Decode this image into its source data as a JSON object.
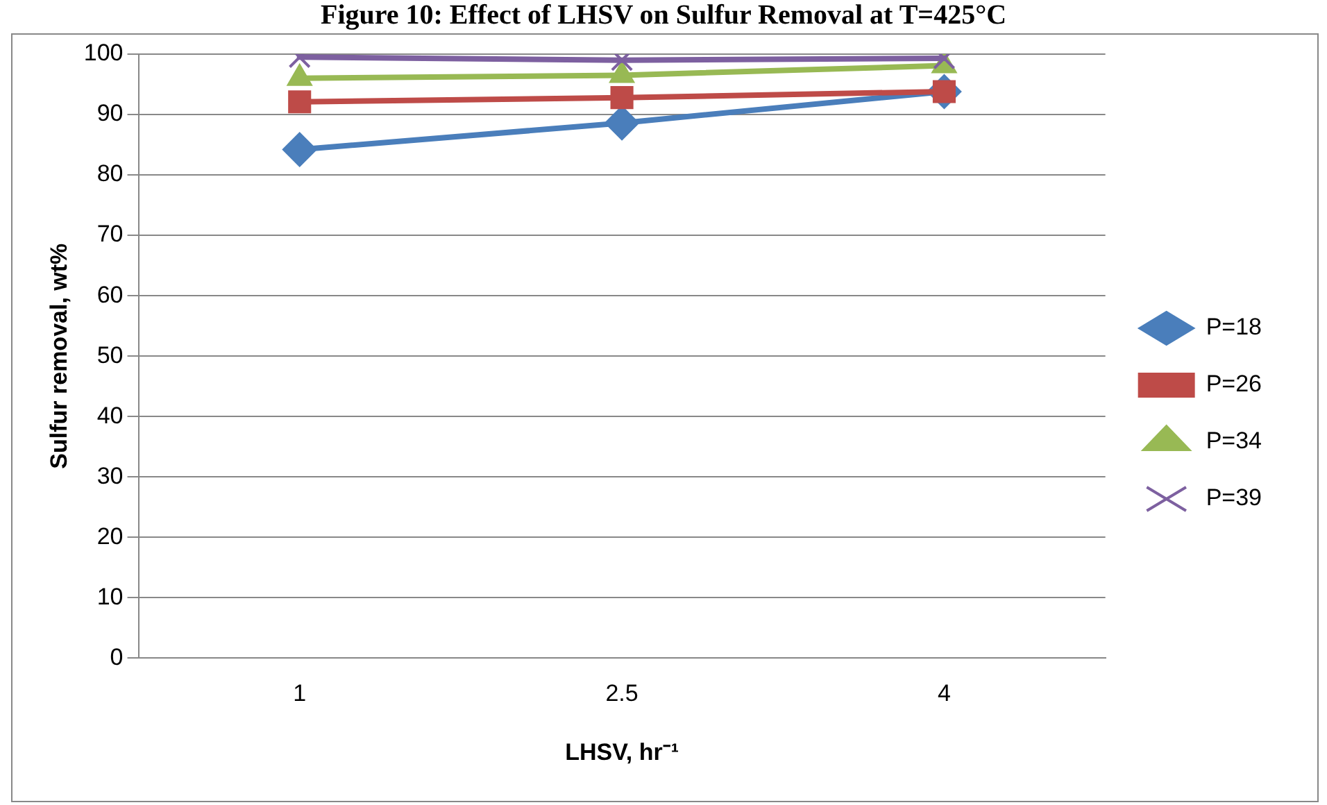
{
  "chart_data": {
    "type": "line",
    "title": "Figure 10: Effect of LHSV on Sulfur Removal at T=425°C",
    "xlabel": "LHSV, hr⁻¹",
    "ylabel": "Sulfur removal, wt%",
    "categories": [
      "1",
      "2.5",
      "4"
    ],
    "series": [
      {
        "name": "P=18",
        "color": "#4a7ebb",
        "marker": "diamond",
        "values": [
          84.2,
          88.6,
          93.8
        ]
      },
      {
        "name": "P=26",
        "color": "#be4b48",
        "marker": "square",
        "values": [
          92.1,
          92.8,
          93.8
        ]
      },
      {
        "name": "P=34",
        "color": "#98b954",
        "marker": "triangle",
        "values": [
          96.0,
          96.5,
          98.1
        ]
      },
      {
        "name": "P=39",
        "color": "#7d60a0",
        "marker": "cross",
        "values": [
          99.5,
          99.0,
          99.3
        ]
      }
    ],
    "ylim": [
      0,
      100
    ],
    "yticks": [
      0,
      10,
      20,
      30,
      40,
      50,
      60,
      70,
      80,
      90,
      100
    ],
    "grid": "y",
    "legend": "right",
    "line_style": "solid"
  }
}
